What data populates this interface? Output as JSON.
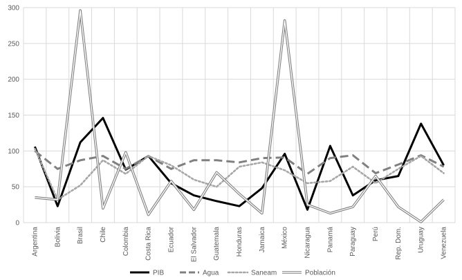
{
  "chart_data": {
    "type": "line",
    "categories": [
      "Argentina",
      "Bolivia",
      "Brasil",
      "Chile",
      "Colombia",
      "Costa Rica",
      "Ecuador",
      "El Salvador",
      "Guatemala",
      "Honduras",
      "Jamaica",
      "México",
      "Nicaragua",
      "Panamá",
      "Paraguay",
      "Perú",
      "Rep. Dom.",
      "Uruguay",
      "Venezuela"
    ],
    "ylim": [
      0,
      300
    ],
    "yticks": [
      0,
      50,
      100,
      150,
      200,
      250,
      300
    ],
    "grid": true,
    "legend_position": "bottom",
    "series": [
      {
        "name": "PIB",
        "color": "#000000",
        "style": "solid",
        "values": [
          106,
          23,
          112,
          146,
          74,
          93,
          55,
          38,
          30,
          23,
          48,
          96,
          18,
          107,
          38,
          59,
          65,
          138,
          80
        ]
      },
      {
        "name": "Agua",
        "color": "#808080",
        "style": "dashed",
        "values": [
          100,
          75,
          87,
          93,
          75,
          93,
          75,
          87,
          87,
          84,
          90,
          91,
          68,
          90,
          94,
          69,
          81,
          94,
          78
        ]
      },
      {
        "name": "Saneam",
        "color": "#a6a6a6",
        "style": "dotted",
        "values": [
          103,
          32,
          52,
          87,
          68,
          93,
          80,
          60,
          50,
          78,
          84,
          73,
          55,
          58,
          78,
          55,
          75,
          93,
          69
        ]
      },
      {
        "name": "Población",
        "color": "#7f7f7f",
        "style": "double",
        "values": [
          35,
          32,
          296,
          20,
          98,
          11,
          58,
          18,
          70,
          40,
          13,
          282,
          25,
          13,
          22,
          65,
          22,
          1,
          32
        ]
      }
    ]
  }
}
